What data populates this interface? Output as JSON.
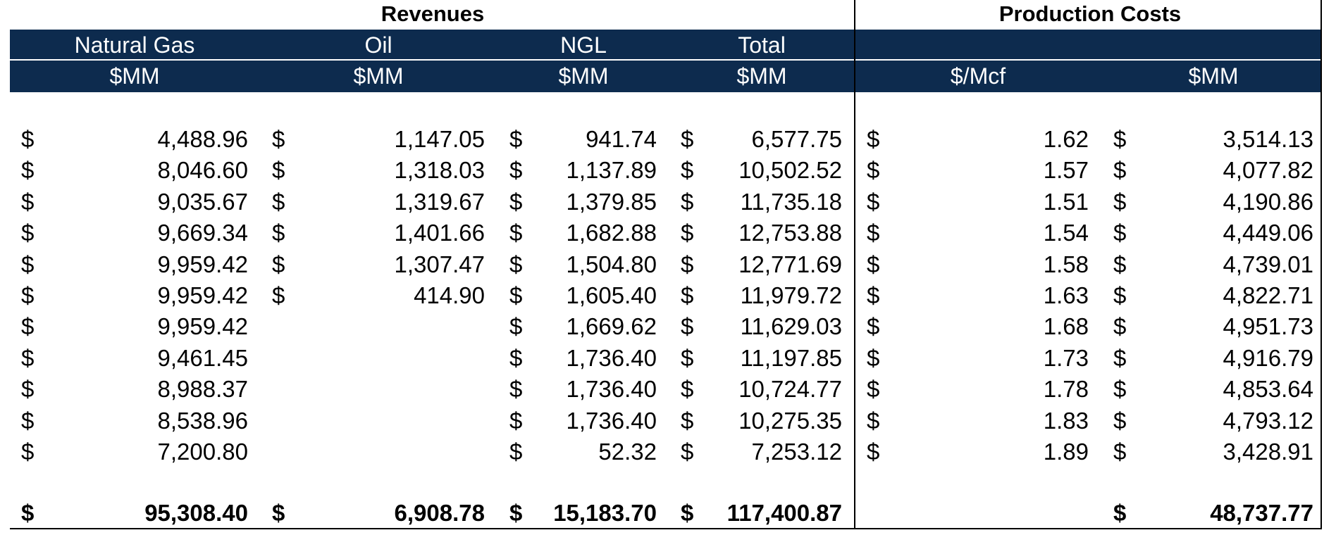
{
  "sections": {
    "revenues": "Revenues",
    "production_costs": "Production Costs"
  },
  "columns": [
    {
      "name": "Natural Gas",
      "unit": "$MM"
    },
    {
      "name": "Oil",
      "unit": "$MM"
    },
    {
      "name": "NGL",
      "unit": "$MM"
    },
    {
      "name": "Total",
      "unit": "$MM"
    },
    {
      "name": "",
      "unit": "$/Mcf"
    },
    {
      "name": "",
      "unit": "$MM"
    }
  ],
  "currency_symbol": "$",
  "rows": [
    {
      "gas": "4,488.96",
      "oil": "1,147.05",
      "ngl": "941.74",
      "total": "6,577.75",
      "mcf": "1.62",
      "cost": "3,514.13"
    },
    {
      "gas": "8,046.60",
      "oil": "1,318.03",
      "ngl": "1,137.89",
      "total": "10,502.52",
      "mcf": "1.57",
      "cost": "4,077.82"
    },
    {
      "gas": "9,035.67",
      "oil": "1,319.67",
      "ngl": "1,379.85",
      "total": "11,735.18",
      "mcf": "1.51",
      "cost": "4,190.86"
    },
    {
      "gas": "9,669.34",
      "oil": "1,401.66",
      "ngl": "1,682.88",
      "total": "12,753.88",
      "mcf": "1.54",
      "cost": "4,449.06"
    },
    {
      "gas": "9,959.42",
      "oil": "1,307.47",
      "ngl": "1,504.80",
      "total": "12,771.69",
      "mcf": "1.58",
      "cost": "4,739.01"
    },
    {
      "gas": "9,959.42",
      "oil": "414.90",
      "ngl": "1,605.40",
      "total": "11,979.72",
      "mcf": "1.63",
      "cost": "4,822.71"
    },
    {
      "gas": "9,959.42",
      "oil": "",
      "ngl": "1,669.62",
      "total": "11,629.03",
      "mcf": "1.68",
      "cost": "4,951.73"
    },
    {
      "gas": "9,461.45",
      "oil": "",
      "ngl": "1,736.40",
      "total": "11,197.85",
      "mcf": "1.73",
      "cost": "4,916.79"
    },
    {
      "gas": "8,988.37",
      "oil": "",
      "ngl": "1,736.40",
      "total": "10,724.77",
      "mcf": "1.78",
      "cost": "4,853.64"
    },
    {
      "gas": "8,538.96",
      "oil": "",
      "ngl": "1,736.40",
      "total": "10,275.35",
      "mcf": "1.83",
      "cost": "4,793.12"
    },
    {
      "gas": "7,200.80",
      "oil": "",
      "ngl": "52.32",
      "total": "7,253.12",
      "mcf": "1.89",
      "cost": "3,428.91"
    }
  ],
  "totals": {
    "gas": "95,308.40",
    "oil": "6,908.78",
    "ngl": "15,183.70",
    "total": "117,400.87",
    "mcf": "",
    "cost": "48,737.77"
  }
}
